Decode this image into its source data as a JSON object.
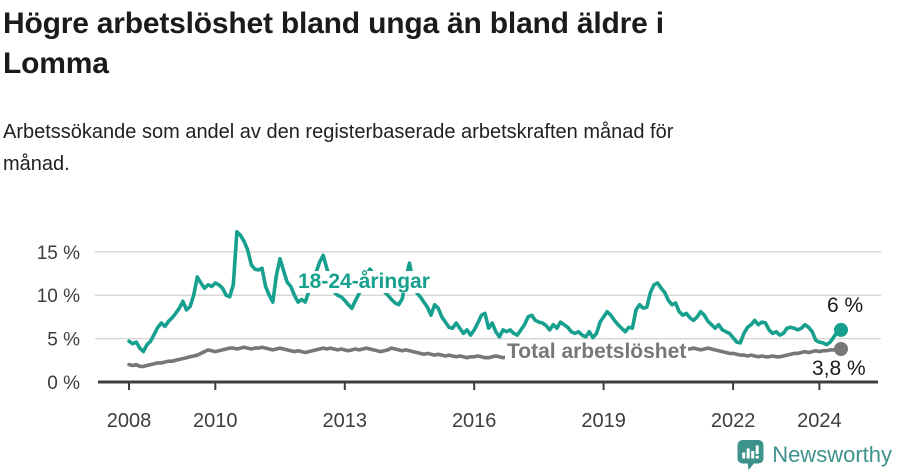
{
  "header": {
    "title_lines": [
      "Högre arbetslöshet bland unga än bland äldre i",
      "Lomma"
    ],
    "subtitle_lines": [
      "Arbetssökande som andel av den registerbaserade arbetskraften månad för",
      "månad."
    ]
  },
  "chart_data": {
    "type": "line",
    "title": "Högre arbetslöshet bland unga än bland äldre i Lomma",
    "subtitle": "Arbetssökande som andel av den registerbaserade arbetskraften månad för månad.",
    "x_start_year": 2008.0,
    "x_step_years": 0.0833333,
    "x_tick_years": [
      2008,
      2010,
      2013,
      2016,
      2019,
      2022,
      2024
    ],
    "y_ticks_percent": [
      0,
      5,
      10,
      15
    ],
    "y_tick_suffix": " %",
    "ylim": [
      0,
      18
    ],
    "grid": true,
    "grid_color": "#d8d8d8",
    "axis_color": "#3d3d3d",
    "axis_text_color": "#3d3d3d",
    "legend_position": "inline-labels",
    "series": [
      {
        "name": "18-24-åringar",
        "inline_label": "18-24-åringar",
        "end_label": "6 %",
        "end_value": 6.0,
        "color": "#17a08e",
        "values": [
          4.7,
          4.4,
          4.6,
          3.9,
          3.5,
          4.3,
          4.7,
          5.5,
          6.3,
          6.8,
          6.4,
          7.0,
          7.4,
          7.9,
          8.5,
          9.3,
          8.3,
          8.7,
          10.0,
          12.1,
          11.4,
          10.8,
          11.2,
          11.0,
          11.4,
          11.2,
          10.8,
          10.0,
          9.8,
          11.2,
          17.3,
          16.9,
          16.2,
          15.2,
          13.5,
          13.0,
          12.9,
          13.1,
          11.0,
          10.0,
          9.2,
          12.3,
          14.2,
          12.8,
          11.5,
          11.0,
          10.0,
          9.2,
          9.5,
          9.2,
          10.4,
          11.5,
          12.6,
          13.8,
          14.6,
          13.1,
          11.8,
          10.4,
          10.0,
          9.8,
          9.4,
          8.9,
          8.5,
          9.4,
          10.2,
          11.3,
          12.3,
          13.0,
          12.5,
          11.7,
          11.0,
          10.4,
          10.0,
          9.5,
          9.1,
          8.9,
          9.6,
          12.0,
          13.7,
          11.5,
          10.3,
          9.8,
          9.2,
          8.6,
          7.7,
          8.9,
          8.5,
          7.5,
          6.9,
          6.3,
          6.2,
          6.8,
          6.2,
          5.6,
          6.0,
          5.4,
          6.0,
          6.8,
          7.7,
          7.9,
          6.2,
          6.8,
          5.8,
          5.2,
          6.0,
          5.8,
          6.0,
          5.6,
          5.4,
          6.0,
          6.6,
          7.5,
          7.7,
          7.1,
          6.9,
          6.8,
          6.5,
          6.0,
          6.6,
          6.2,
          6.9,
          6.6,
          6.3,
          5.8,
          5.6,
          5.8,
          5.4,
          5.2,
          5.8,
          5.1,
          5.6,
          6.9,
          7.5,
          8.1,
          7.7,
          7.1,
          6.6,
          6.2,
          5.8,
          6.3,
          6.2,
          8.3,
          8.9,
          8.5,
          8.6,
          10.3,
          11.2,
          11.4,
          10.8,
          10.3,
          9.4,
          8.9,
          9.1,
          8.1,
          7.7,
          7.9,
          7.4,
          7.1,
          7.5,
          8.1,
          7.7,
          7.0,
          6.6,
          6.2,
          6.6,
          6.0,
          5.8,
          5.6,
          5.1,
          4.6,
          4.5,
          5.6,
          6.3,
          6.6,
          7.1,
          6.6,
          6.9,
          6.8,
          6.0,
          5.6,
          5.8,
          5.4,
          5.6,
          6.2,
          6.3,
          6.2,
          6.0,
          6.2,
          6.6,
          6.3,
          5.8,
          4.8,
          4.6,
          4.5,
          4.3,
          4.6,
          5.2,
          5.8,
          6.0
        ]
      },
      {
        "name": "Total arbetslöshet",
        "inline_label": "Total arbetslöshet",
        "end_label": "3,8 %",
        "end_value": 3.8,
        "color": "#777777",
        "values": [
          2.0,
          1.9,
          2.0,
          1.8,
          1.8,
          1.9,
          2.0,
          2.1,
          2.2,
          2.2,
          2.3,
          2.4,
          2.4,
          2.5,
          2.6,
          2.7,
          2.8,
          2.9,
          3.0,
          3.1,
          3.3,
          3.5,
          3.7,
          3.6,
          3.5,
          3.6,
          3.7,
          3.8,
          3.9,
          3.9,
          3.8,
          3.9,
          4.0,
          3.9,
          3.8,
          3.9,
          3.9,
          4.0,
          3.9,
          3.8,
          3.7,
          3.8,
          3.9,
          3.8,
          3.7,
          3.6,
          3.5,
          3.6,
          3.5,
          3.4,
          3.5,
          3.6,
          3.7,
          3.8,
          3.9,
          3.8,
          3.9,
          3.8,
          3.7,
          3.8,
          3.7,
          3.6,
          3.7,
          3.8,
          3.7,
          3.8,
          3.9,
          3.8,
          3.7,
          3.6,
          3.5,
          3.6,
          3.7,
          3.9,
          3.8,
          3.7,
          3.6,
          3.7,
          3.6,
          3.5,
          3.4,
          3.3,
          3.2,
          3.3,
          3.2,
          3.1,
          3.2,
          3.1,
          3.0,
          3.1,
          3.0,
          2.9,
          3.0,
          2.9,
          2.8,
          2.9,
          2.9,
          3.0,
          2.9,
          2.8,
          2.8,
          2.9,
          3.0,
          2.9,
          2.8,
          2.9,
          3.0,
          2.9,
          2.9,
          2.8,
          2.9,
          3.0,
          2.9,
          2.8,
          2.9,
          3.0,
          2.9,
          2.8,
          2.9,
          3.0,
          2.9,
          2.8,
          2.9,
          2.8,
          2.9,
          3.0,
          2.9,
          2.8,
          2.9,
          2.8,
          2.9,
          3.0,
          3.0,
          3.1,
          3.0,
          2.9,
          3.0,
          3.1,
          3.0,
          3.1,
          3.2,
          3.3,
          3.4,
          3.5,
          3.5,
          3.6,
          3.7,
          3.8,
          3.9,
          3.8,
          3.7,
          3.8,
          3.7,
          3.6,
          3.7,
          3.8,
          3.8,
          3.9,
          3.8,
          3.7,
          3.8,
          3.9,
          3.8,
          3.7,
          3.6,
          3.5,
          3.4,
          3.3,
          3.3,
          3.2,
          3.1,
          3.1,
          3.0,
          3.1,
          3.0,
          2.9,
          3.0,
          2.9,
          2.9,
          3.0,
          2.9,
          2.9,
          3.0,
          3.1,
          3.2,
          3.3,
          3.3,
          3.4,
          3.5,
          3.4,
          3.5,
          3.6,
          3.5,
          3.6,
          3.6,
          3.7,
          3.7,
          3.7,
          3.8
        ]
      }
    ]
  },
  "footer": {
    "brand": "Newsworthy",
    "brand_color": "#3e928c"
  }
}
